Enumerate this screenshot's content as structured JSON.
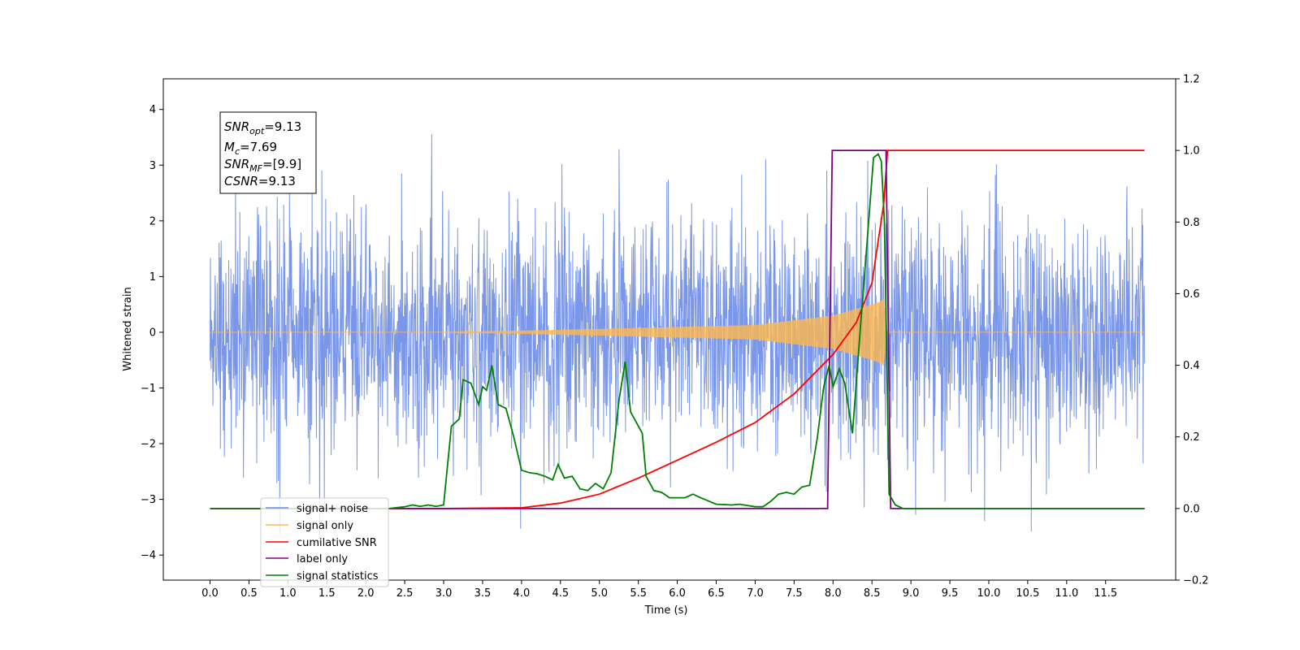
{
  "chart_data": {
    "type": "line",
    "xlabel": "Time (s)",
    "ylabel_left": "Whitened strain",
    "ylabel_right": "",
    "xlim": [
      -0.6,
      12.4
    ],
    "ylim_left": [
      -4.45,
      4.55
    ],
    "ylim_right": [
      -0.2,
      1.2
    ],
    "x_ticks": [
      "0.0",
      "0.5",
      "1.0",
      "1.5",
      "2.0",
      "2.5",
      "3.0",
      "3.5",
      "4.0",
      "4.5",
      "5.0",
      "5.5",
      "6.0",
      "6.5",
      "7.0",
      "7.5",
      "8.0",
      "8.5",
      "9.0",
      "9.5",
      "10.0",
      "10.5",
      "11.0",
      "11.5"
    ],
    "y_ticks_left": [
      "4",
      "3",
      "2",
      "1",
      "0",
      "−1",
      "−2",
      "−3",
      "−4"
    ],
    "y_ticks_right": [
      "1.2",
      "1.0",
      "0.8",
      "0.6",
      "0.4",
      "0.2",
      "0.0",
      "−0.2"
    ],
    "grid": false,
    "legend_position": "lower-left",
    "info_box": [
      {
        "base": "SNR",
        "sub": "opt",
        "rest": "=9.13"
      },
      {
        "base": "M",
        "sub": "c",
        "rest": "=7.69"
      },
      {
        "base": "SNR",
        "sub": "MF",
        "rest": "=[9.9]"
      },
      {
        "base": "CSNR",
        "sub": "",
        "rest": "=9.13"
      }
    ],
    "series": [
      {
        "name": "signal+ noise",
        "color": "#6a8be6",
        "axis": "left",
        "x_range": [
          0.0,
          12.0
        ],
        "approx_amplitude": "|y| < 4.1, mostly within ±2.4"
      },
      {
        "name": "signal only",
        "color": "#ffb84d",
        "axis": "left",
        "x_range": [
          0.0,
          12.0
        ],
        "envelope": {
          "x": [
            0.0,
            3.0,
            5.0,
            7.0,
            8.0,
            8.5,
            8.6,
            8.65,
            8.7,
            12.0
          ],
          "amplitude": [
            0.0,
            0.0,
            0.06,
            0.13,
            0.3,
            0.5,
            0.55,
            0.6,
            0.0,
            0.0
          ]
        }
      },
      {
        "name": "cumilative SNR",
        "color": "#ff0000",
        "axis": "right",
        "points": [
          [
            0.0,
            0.0
          ],
          [
            3.0,
            0.0
          ],
          [
            4.0,
            0.002
          ],
          [
            4.5,
            0.015
          ],
          [
            5.0,
            0.04
          ],
          [
            5.5,
            0.085
          ],
          [
            6.0,
            0.135
          ],
          [
            6.5,
            0.185
          ],
          [
            7.0,
            0.24
          ],
          [
            7.5,
            0.32
          ],
          [
            8.0,
            0.43
          ],
          [
            8.3,
            0.52
          ],
          [
            8.5,
            0.63
          ],
          [
            8.65,
            0.85
          ],
          [
            8.7,
            1.0
          ],
          [
            12.0,
            1.0
          ]
        ]
      },
      {
        "name": "label only",
        "color": "#800080",
        "axis": "right",
        "points": [
          [
            0.0,
            0.0
          ],
          [
            7.93,
            0.0
          ],
          [
            7.99,
            1.0
          ],
          [
            8.68,
            1.0
          ],
          [
            8.74,
            0.0
          ],
          [
            12.0,
            0.0
          ]
        ]
      },
      {
        "name": "signal statistics",
        "color": "#008000",
        "axis": "right",
        "points": [
          [
            0.0,
            0.0
          ],
          [
            2.3,
            0.0
          ],
          [
            2.5,
            0.005
          ],
          [
            2.6,
            0.01
          ],
          [
            2.7,
            0.006
          ],
          [
            2.8,
            0.01
          ],
          [
            2.9,
            0.006
          ],
          [
            3.0,
            0.01
          ],
          [
            3.1,
            0.23
          ],
          [
            3.2,
            0.25
          ],
          [
            3.25,
            0.36
          ],
          [
            3.35,
            0.35
          ],
          [
            3.45,
            0.29
          ],
          [
            3.5,
            0.34
          ],
          [
            3.55,
            0.33
          ],
          [
            3.62,
            0.4
          ],
          [
            3.7,
            0.29
          ],
          [
            3.8,
            0.28
          ],
          [
            3.9,
            0.2
          ],
          [
            4.0,
            0.107
          ],
          [
            4.1,
            0.1
          ],
          [
            4.2,
            0.097
          ],
          [
            4.3,
            0.09
          ],
          [
            4.4,
            0.08
          ],
          [
            4.47,
            0.123
          ],
          [
            4.55,
            0.085
          ],
          [
            4.65,
            0.09
          ],
          [
            4.75,
            0.055
          ],
          [
            4.85,
            0.05
          ],
          [
            4.95,
            0.07
          ],
          [
            5.05,
            0.055
          ],
          [
            5.15,
            0.1
          ],
          [
            5.25,
            0.3
          ],
          [
            5.33,
            0.41
          ],
          [
            5.4,
            0.27
          ],
          [
            5.55,
            0.21
          ],
          [
            5.6,
            0.09
          ],
          [
            5.7,
            0.05
          ],
          [
            5.8,
            0.045
          ],
          [
            5.9,
            0.03
          ],
          [
            6.1,
            0.03
          ],
          [
            6.2,
            0.04
          ],
          [
            6.3,
            0.03
          ],
          [
            6.5,
            0.012
          ],
          [
            6.7,
            0.01
          ],
          [
            6.8,
            0.012
          ],
          [
            7.0,
            0.005
          ],
          [
            7.1,
            0.005
          ],
          [
            7.2,
            0.02
          ],
          [
            7.3,
            0.04
          ],
          [
            7.4,
            0.045
          ],
          [
            7.5,
            0.04
          ],
          [
            7.6,
            0.06
          ],
          [
            7.7,
            0.065
          ],
          [
            7.8,
            0.2
          ],
          [
            7.88,
            0.34
          ],
          [
            7.95,
            0.4
          ],
          [
            8.0,
            0.34
          ],
          [
            8.08,
            0.39
          ],
          [
            8.15,
            0.35
          ],
          [
            8.25,
            0.21
          ],
          [
            8.35,
            0.5
          ],
          [
            8.45,
            0.78
          ],
          [
            8.52,
            0.98
          ],
          [
            8.58,
            0.99
          ],
          [
            8.62,
            0.97
          ],
          [
            8.66,
            0.8
          ],
          [
            8.72,
            0.04
          ],
          [
            8.8,
            0.01
          ],
          [
            8.9,
            0.0
          ],
          [
            12.0,
            0.0
          ]
        ]
      }
    ]
  }
}
